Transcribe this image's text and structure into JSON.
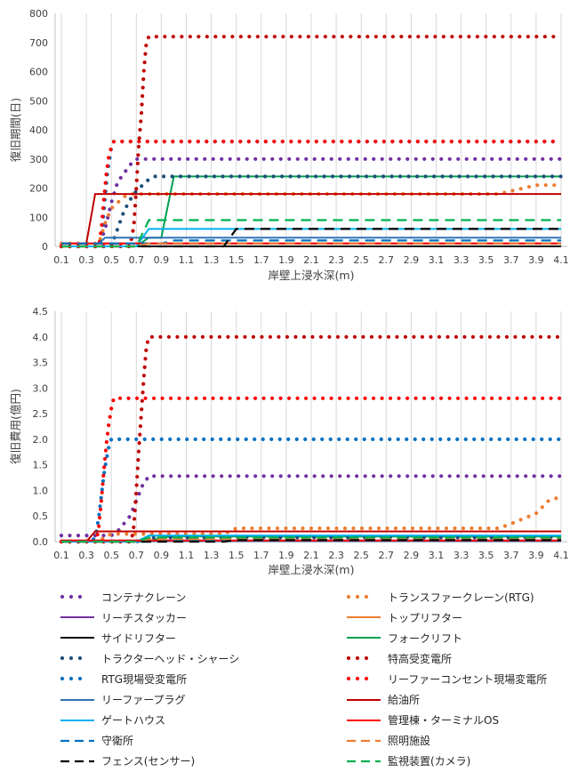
{
  "chart_data": [
    {
      "type": "line",
      "title": "",
      "xlabel": "岸壁上浸水深(m)",
      "ylabel": "復旧期間(日)",
      "ylim": [
        0,
        800
      ],
      "yticks": [
        0,
        100,
        200,
        300,
        400,
        500,
        600,
        700,
        800
      ],
      "xlim": [
        0.05,
        4.15
      ],
      "xticks": [
        "0.1",
        "0.3",
        "0.5",
        "0.7",
        "0.9",
        "1.1",
        "1.3",
        "1.5",
        "1.7",
        "1.9",
        "2.1",
        "2.3",
        "2.5",
        "2.7",
        "2.9",
        "3.1",
        "3.3",
        "3.5",
        "3.7",
        "3.9",
        "4.1"
      ],
      "grid": "vertical",
      "series": [
        {
          "name": "コンテナクレーン",
          "points": [
            [
              0.1,
              0
            ],
            [
              0.4,
              0
            ],
            [
              0.45,
              60
            ],
            [
              0.5,
              150
            ],
            [
              0.55,
              220
            ],
            [
              0.6,
              250
            ],
            [
              0.65,
              280
            ],
            [
              0.7,
              300
            ],
            [
              4.1,
              300
            ]
          ]
        },
        {
          "name": "トランスファークレーン(RTG)",
          "points": [
            [
              0.1,
              10
            ],
            [
              0.4,
              10
            ],
            [
              0.45,
              80
            ],
            [
              0.5,
              130
            ],
            [
              0.55,
              150
            ],
            [
              0.6,
              170
            ],
            [
              0.65,
              180
            ],
            [
              3.6,
              180
            ],
            [
              3.7,
              190
            ],
            [
              3.8,
              200
            ],
            [
              3.9,
              210
            ],
            [
              4.1,
              210
            ]
          ]
        },
        {
          "name": "リーチスタッカー",
          "points": [
            [
              0.1,
              10
            ],
            [
              4.1,
              10
            ]
          ]
        },
        {
          "name": "トップリフター",
          "points": [
            [
              0.1,
              10
            ],
            [
              4.1,
              10
            ]
          ]
        },
        {
          "name": "サイドリフター",
          "points": [
            [
              0.1,
              0
            ],
            [
              4.1,
              0
            ]
          ]
        },
        {
          "name": "フォークリフト",
          "points": [
            [
              0.1,
              0
            ],
            [
              0.7,
              0
            ],
            [
              0.8,
              30
            ],
            [
              0.9,
              30
            ],
            [
              1.0,
              240
            ],
            [
              4.1,
              240
            ]
          ]
        },
        {
          "name": "トラクターヘッド・シャーシ",
          "points": [
            [
              0.1,
              0
            ],
            [
              0.5,
              0
            ],
            [
              0.55,
              60
            ],
            [
              0.6,
              120
            ],
            [
              0.65,
              160
            ],
            [
              0.7,
              190
            ],
            [
              0.75,
              210
            ],
            [
              0.8,
              230
            ],
            [
              0.85,
              240
            ],
            [
              4.1,
              240
            ]
          ]
        },
        {
          "name": "特高受変電所",
          "points": [
            [
              0.1,
              0
            ],
            [
              0.65,
              0
            ],
            [
              0.68,
              70
            ],
            [
              0.7,
              200
            ],
            [
              0.72,
              350
            ],
            [
              0.74,
              450
            ],
            [
              0.76,
              600
            ],
            [
              0.78,
              700
            ],
            [
              0.8,
              720
            ],
            [
              4.1,
              720
            ]
          ]
        },
        {
          "name": "RTG現場受変電所",
          "points": [
            [
              0.1,
              0
            ],
            [
              0.4,
              0
            ],
            [
              0.43,
              70
            ],
            [
              0.45,
              170
            ],
            [
              0.47,
              260
            ],
            [
              0.49,
              310
            ],
            [
              0.5,
              340
            ],
            [
              0.52,
              360
            ],
            [
              4.1,
              360
            ]
          ]
        },
        {
          "name": "リーファーコンセント現場変電所",
          "points": [
            [
              0.1,
              0
            ],
            [
              0.4,
              0
            ],
            [
              0.42,
              60
            ],
            [
              0.44,
              160
            ],
            [
              0.46,
              250
            ],
            [
              0.48,
              310
            ],
            [
              0.5,
              340
            ],
            [
              0.52,
              360
            ],
            [
              4.1,
              360
            ]
          ]
        },
        {
          "name": "リーファープラグ",
          "points": [
            [
              0.1,
              10
            ],
            [
              0.4,
              10
            ],
            [
              0.45,
              30
            ],
            [
              4.1,
              30
            ]
          ]
        },
        {
          "name": "給油所",
          "points": [
            [
              0.1,
              10
            ],
            [
              0.3,
              10
            ],
            [
              0.37,
              180
            ],
            [
              4.1,
              180
            ]
          ]
        },
        {
          "name": "ゲートハウス",
          "points": [
            [
              0.1,
              0
            ],
            [
              0.7,
              0
            ],
            [
              0.75,
              30
            ],
            [
              0.8,
              60
            ],
            [
              4.1,
              60
            ]
          ]
        },
        {
          "name": "管理棟・ターミナルOS",
          "points": [
            [
              0.1,
              10
            ],
            [
              4.1,
              10
            ]
          ]
        },
        {
          "name": "守衛所",
          "points": [
            [
              0.1,
              10
            ],
            [
              0.9,
              10
            ],
            [
              1.0,
              20
            ],
            [
              4.1,
              20
            ]
          ]
        },
        {
          "name": "照明施設",
          "points": [
            [
              0.1,
              0
            ],
            [
              0.7,
              0
            ],
            [
              0.8,
              10
            ],
            [
              4.1,
              10
            ]
          ]
        },
        {
          "name": "フェンス(センサー)",
          "points": [
            [
              0.1,
              0
            ],
            [
              1.4,
              0
            ],
            [
              1.5,
              60
            ],
            [
              4.1,
              60
            ]
          ]
        },
        {
          "name": "監視装置(カメラ)",
          "points": [
            [
              0.1,
              0
            ],
            [
              0.7,
              0
            ],
            [
              0.8,
              90
            ],
            [
              4.1,
              90
            ]
          ]
        }
      ]
    },
    {
      "type": "line",
      "title": "",
      "xlabel": "岸壁上浸水深(m)",
      "ylabel": "復旧費用(億円)",
      "ylim": [
        0,
        4.5
      ],
      "yticks": [
        "0.0",
        "0.5",
        "1.0",
        "1.5",
        "2.0",
        "2.5",
        "3.0",
        "3.5",
        "4.0",
        "4.5"
      ],
      "xlim": [
        0.05,
        4.15
      ],
      "xticks": [
        "0.1",
        "0.3",
        "0.5",
        "0.7",
        "0.9",
        "1.1",
        "1.3",
        "1.5",
        "1.7",
        "1.9",
        "2.1",
        "2.3",
        "2.5",
        "2.7",
        "2.9",
        "3.1",
        "3.3",
        "3.5",
        "3.7",
        "3.9",
        "4.1"
      ],
      "grid": "vertical",
      "series": [
        {
          "name": "コンテナクレーン",
          "points": [
            [
              0.1,
              0.12
            ],
            [
              0.5,
              0.12
            ],
            [
              0.55,
              0.2
            ],
            [
              0.6,
              0.35
            ],
            [
              0.65,
              0.5
            ],
            [
              0.7,
              0.8
            ],
            [
              0.75,
              1.1
            ],
            [
              0.8,
              1.28
            ],
            [
              4.1,
              1.28
            ]
          ]
        },
        {
          "name": "トランスファークレーン(RTG)",
          "points": [
            [
              0.1,
              0
            ],
            [
              0.4,
              0
            ],
            [
              0.45,
              0.1
            ],
            [
              0.5,
              0.15
            ],
            [
              1.4,
              0.15
            ],
            [
              1.5,
              0.26
            ],
            [
              3.6,
              0.26
            ],
            [
              3.7,
              0.35
            ],
            [
              3.8,
              0.45
            ],
            [
              3.9,
              0.55
            ],
            [
              4.0,
              0.8
            ],
            [
              4.1,
              0.88
            ]
          ]
        },
        {
          "name": "リーチスタッカー",
          "points": [
            [
              0.1,
              0.02
            ],
            [
              4.1,
              0.02
            ]
          ]
        },
        {
          "name": "トップリフター",
          "points": [
            [
              0.1,
              0.02
            ],
            [
              4.1,
              0.02
            ]
          ]
        },
        {
          "name": "サイドリフター",
          "points": [
            [
              0.1,
              0.01
            ],
            [
              4.1,
              0.01
            ]
          ]
        },
        {
          "name": "フォークリフト",
          "points": [
            [
              0.1,
              0
            ],
            [
              0.8,
              0
            ],
            [
              0.9,
              0.08
            ],
            [
              1.0,
              0.1
            ],
            [
              4.1,
              0.1
            ]
          ]
        },
        {
          "name": "トラクターヘッド・シャーシ",
          "points": [
            [
              0.1,
              0
            ],
            [
              0.7,
              0
            ],
            [
              0.8,
              0.08
            ],
            [
              4.1,
              0.08
            ]
          ]
        },
        {
          "name": "特高受変電所",
          "points": [
            [
              0.1,
              0
            ],
            [
              0.66,
              0
            ],
            [
              0.68,
              0.3
            ],
            [
              0.7,
              1.0
            ],
            [
              0.72,
              1.8
            ],
            [
              0.74,
              2.5
            ],
            [
              0.76,
              3.2
            ],
            [
              0.78,
              3.8
            ],
            [
              0.8,
              4.0
            ],
            [
              4.1,
              4.0
            ]
          ]
        },
        {
          "name": "RTG現場受変電所",
          "points": [
            [
              0.1,
              0
            ],
            [
              0.35,
              0
            ],
            [
              0.38,
              0.2
            ],
            [
              0.4,
              0.5
            ],
            [
              0.42,
              0.9
            ],
            [
              0.44,
              1.3
            ],
            [
              0.46,
              1.6
            ],
            [
              0.48,
              1.85
            ],
            [
              0.5,
              2.0
            ],
            [
              4.1,
              2.0
            ]
          ]
        },
        {
          "name": "リーファーコンセント現場変電所",
          "points": [
            [
              0.1,
              0
            ],
            [
              0.38,
              0
            ],
            [
              0.4,
              0.3
            ],
            [
              0.42,
              0.8
            ],
            [
              0.44,
              1.4
            ],
            [
              0.46,
              1.9
            ],
            [
              0.48,
              2.3
            ],
            [
              0.5,
              2.6
            ],
            [
              0.52,
              2.8
            ],
            [
              4.1,
              2.8
            ]
          ]
        },
        {
          "name": "リーファープラグ",
          "points": [
            [
              0.1,
              0.01
            ],
            [
              4.1,
              0.01
            ]
          ]
        },
        {
          "name": "給油所",
          "points": [
            [
              0.1,
              0
            ],
            [
              0.3,
              0
            ],
            [
              0.37,
              0.2
            ],
            [
              4.1,
              0.2
            ]
          ]
        },
        {
          "name": "ゲートハウス",
          "points": [
            [
              0.1,
              0
            ],
            [
              0.7,
              0
            ],
            [
              0.8,
              0.12
            ],
            [
              4.1,
              0.12
            ]
          ]
        },
        {
          "name": "管理棟・ターミナルOS",
          "points": [
            [
              0.1,
              0.02
            ],
            [
              4.1,
              0.02
            ]
          ]
        },
        {
          "name": "守衛所",
          "points": [
            [
              0.1,
              0
            ],
            [
              0.9,
              0
            ],
            [
              1.0,
              0.03
            ],
            [
              4.1,
              0.03
            ]
          ]
        },
        {
          "name": "照明施設",
          "points": [
            [
              0.1,
              0
            ],
            [
              0.7,
              0
            ],
            [
              0.8,
              0.05
            ],
            [
              4.1,
              0.05
            ]
          ]
        },
        {
          "name": "フェンス(センサー)",
          "points": [
            [
              0.1,
              0
            ],
            [
              1.4,
              0
            ],
            [
              1.5,
              0.03
            ],
            [
              4.1,
              0.03
            ]
          ]
        },
        {
          "name": "監視装置(カメラ)",
          "points": [
            [
              0.1,
              0
            ],
            [
              0.7,
              0
            ],
            [
              0.8,
              0.08
            ],
            [
              4.1,
              0.08
            ]
          ]
        }
      ]
    }
  ],
  "legend": [
    {
      "name": "コンテナクレーン",
      "color": "#7030a0",
      "style": "dotted",
      "column": "left"
    },
    {
      "name": "トランスファークレーン(RTG)",
      "color": "#ed7d31",
      "style": "dotted",
      "column": "right"
    },
    {
      "name": "リーチスタッカー",
      "color": "#7030a0",
      "style": "solid",
      "column": "left"
    },
    {
      "name": "トップリフター",
      "color": "#ed7d31",
      "style": "solid",
      "column": "right"
    },
    {
      "name": "サイドリフター",
      "color": "#000000",
      "style": "solid",
      "column": "left"
    },
    {
      "name": "フォークリフト",
      "color": "#00a050",
      "style": "solid",
      "column": "right"
    },
    {
      "name": "トラクターヘッド・シャーシ",
      "color": "#1f4e79",
      "style": "dotted",
      "column": "left"
    },
    {
      "name": "特高受変電所",
      "color": "#c00000",
      "style": "dotted",
      "column": "right"
    },
    {
      "name": "RTG現場受変電所",
      "color": "#0070c0",
      "style": "dotted",
      "column": "left"
    },
    {
      "name": "リーファーコンセント現場変電所",
      "color": "#ff0000",
      "style": "dotted",
      "column": "right"
    },
    {
      "name": "リーファープラグ",
      "color": "#2e75b6",
      "style": "solid",
      "column": "left"
    },
    {
      "name": "給油所",
      "color": "#c00000",
      "style": "solid",
      "column": "right"
    },
    {
      "name": "ゲートハウス",
      "color": "#00b0f0",
      "style": "solid",
      "column": "left"
    },
    {
      "name": "管理棟・ターミナルOS",
      "color": "#ff0000",
      "style": "solid",
      "column": "right"
    },
    {
      "name": "守衛所",
      "color": "#0070c0",
      "style": "dashed",
      "column": "left"
    },
    {
      "name": "照明施設",
      "color": "#ed7d31",
      "style": "dashed",
      "column": "right"
    },
    {
      "name": "フェンス(センサー)",
      "color": "#000000",
      "style": "dashed",
      "column": "left"
    },
    {
      "name": "監視装置(カメラ)",
      "color": "#00b050",
      "style": "dashed",
      "column": "right"
    }
  ]
}
